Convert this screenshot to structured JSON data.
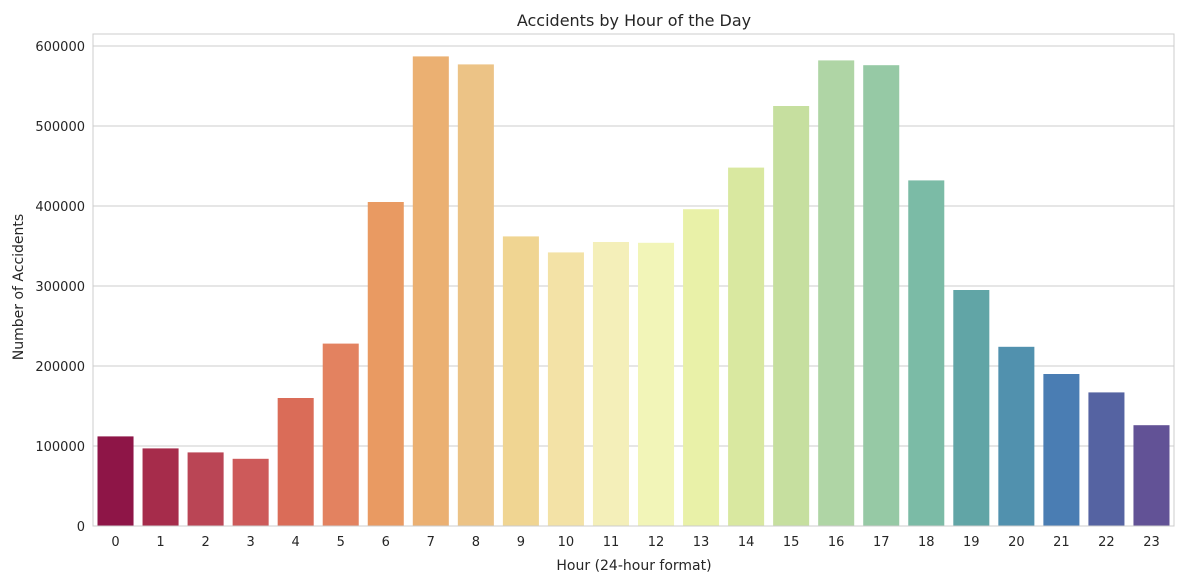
{
  "chart_data": {
    "type": "bar",
    "title": "Accidents by Hour of the Day",
    "xlabel": "Hour (24-hour format)",
    "ylabel": "Number of Accidents",
    "ylim": [
      0,
      615000
    ],
    "yticks": [
      0,
      100000,
      200000,
      300000,
      400000,
      500000,
      600000
    ],
    "ytick_labels": [
      "0",
      "100000",
      "200000",
      "300000",
      "400000",
      "500000",
      "600000"
    ],
    "grid": "horizontal",
    "legend": "none",
    "categories": [
      "0",
      "1",
      "2",
      "3",
      "4",
      "5",
      "6",
      "7",
      "8",
      "9",
      "10",
      "11",
      "12",
      "13",
      "14",
      "15",
      "16",
      "17",
      "18",
      "19",
      "20",
      "21",
      "22",
      "23"
    ],
    "values": [
      112000,
      97000,
      92000,
      84000,
      160000,
      228000,
      405000,
      587000,
      577000,
      362000,
      342000,
      355000,
      354000,
      396000,
      448000,
      525000,
      582000,
      576000,
      432000,
      295000,
      224000,
      190000,
      167000,
      126000
    ],
    "colors": [
      "#8e1547",
      "#a62c4b",
      "#ba4555",
      "#cd5a5a",
      "#da6c58",
      "#e38260",
      "#e99a62",
      "#ebb072",
      "#ecc386",
      "#f0d592",
      "#f3e2a6",
      "#f4efb9",
      "#f2f5b8",
      "#e9f1a8",
      "#d9e8a0",
      "#c6df9f",
      "#afd5a5",
      "#96c9a5",
      "#7bbba6",
      "#61a5a6",
      "#5191ae",
      "#4a7db3",
      "#5563a2",
      "#625296"
    ]
  }
}
